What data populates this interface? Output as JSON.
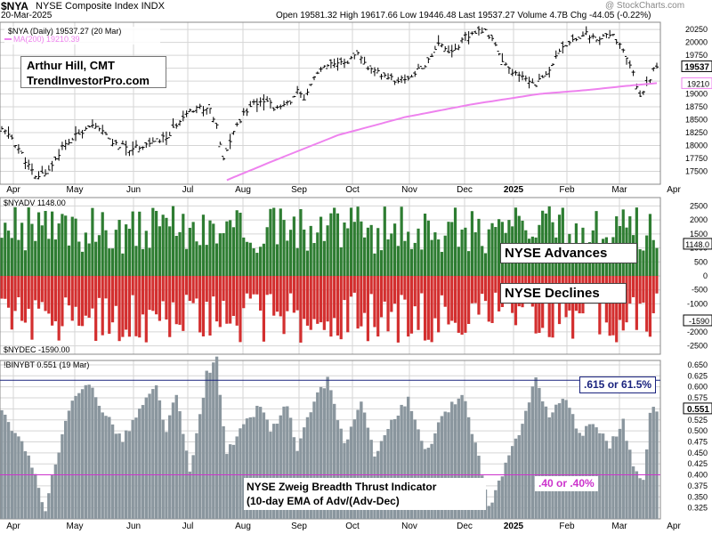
{
  "header": {
    "symbol": "$NYA",
    "name": "NYSE Composite Index",
    "exchange": "INDX",
    "date": "20-Mar-2025",
    "quote": "Open 19581.32  High 19617.66  Low 19446.48  Last 19537.27  Volume 4.7B  Chg -44.05 (-0.22%)",
    "brand": "@ StockCharts.com"
  },
  "credit": {
    "line1": "Arthur Hill, CMT",
    "line2": "TrendInvestorPro.com"
  },
  "annotations": {
    "advances": "NYSE Advances",
    "declines": "NYSE Declines",
    "zweig_line1": "NYSE Zweig Breadth Thrust Indicator",
    "zweig_line2": "(10-day EMA of Adv/(Adv-Dec)",
    "upper_level": ".615 or 61.5%",
    "lower_level": ".40 or .40%"
  },
  "colors": {
    "price": "#000000",
    "ma": "#ee82ee",
    "advances": "#2e7d32",
    "declines": "#d32f2f",
    "zbt": "#8a969e",
    "upper_line": "#1a237e",
    "lower_line": "#cc33cc",
    "grid": "#d5d5d5"
  },
  "chart_data": [
    {
      "type": "ohlc",
      "legend": [
        "$NYA (Daily) 19537.27 (20 Mar)",
        "MA(200) 19210.39"
      ],
      "months": [
        "Apr",
        "May",
        "Jun",
        "Jul",
        "Aug",
        "Sep",
        "Oct",
        "Nov",
        "Dec",
        "2025",
        "Feb",
        "Mar",
        "Apr"
      ],
      "yticks": [
        17500,
        17750,
        18000,
        18250,
        18500,
        18750,
        19000,
        19250,
        19500,
        19750,
        20000,
        20250
      ],
      "ylim": [
        17250,
        20390
      ],
      "last_label": "19537",
      "ma_label": "19210",
      "close_pts": [
        [
          0,
          18310
        ],
        [
          3,
          18150
        ],
        [
          7,
          17720
        ],
        [
          10,
          17370
        ],
        [
          14,
          17530
        ],
        [
          18,
          17960
        ],
        [
          22,
          18180
        ],
        [
          26,
          18400
        ],
        [
          30,
          18250
        ],
        [
          34,
          18010
        ],
        [
          38,
          17950
        ],
        [
          42,
          18010
        ],
        [
          46,
          18080
        ],
        [
          50,
          18200
        ],
        [
          54,
          18600
        ],
        [
          58,
          18750
        ],
        [
          62,
          18700
        ],
        [
          64,
          18350
        ],
        [
          66,
          17700
        ],
        [
          68,
          18100
        ],
        [
          70,
          18400
        ],
        [
          74,
          18800
        ],
        [
          78,
          18900
        ],
        [
          82,
          18700
        ],
        [
          85,
          18800
        ],
        [
          88,
          19050
        ],
        [
          90,
          18850
        ],
        [
          93,
          19350
        ],
        [
          97,
          19550
        ],
        [
          102,
          19600
        ],
        [
          106,
          19750
        ],
        [
          110,
          19450
        ],
        [
          114,
          19350
        ],
        [
          118,
          19250
        ],
        [
          122,
          19350
        ],
        [
          126,
          19550
        ],
        [
          130,
          20000
        ],
        [
          134,
          19800
        ],
        [
          138,
          20100
        ],
        [
          141,
          20150
        ],
        [
          143,
          20250
        ],
        [
          146,
          20100
        ],
        [
          149,
          19600
        ],
        [
          152,
          19400
        ],
        [
          156,
          19300
        ],
        [
          159,
          19200
        ],
        [
          162,
          19380
        ],
        [
          166,
          19800
        ],
        [
          170,
          20080
        ],
        [
          174,
          20150
        ],
        [
          178,
          20050
        ],
        [
          182,
          20170
        ],
        [
          185,
          19800
        ],
        [
          188,
          19380
        ],
        [
          190,
          18950
        ],
        [
          192,
          19200
        ],
        [
          194,
          19450
        ],
        [
          195,
          19537
        ]
      ],
      "ma_start_pt": [
        67,
        17300
      ],
      "ma_pts": [
        [
          67,
          17330
        ],
        [
          80,
          17680
        ],
        [
          100,
          18200
        ],
        [
          120,
          18550
        ],
        [
          140,
          18800
        ],
        [
          160,
          19000
        ],
        [
          175,
          19080
        ],
        [
          185,
          19150
        ],
        [
          195,
          19210
        ]
      ]
    },
    {
      "type": "bar",
      "legend_top": "$NYADV 1148.00",
      "legend_bottom": "$NYDEC -1590.00",
      "yticks": [
        -2500,
        -2000,
        -1500,
        -1000,
        -500,
        0,
        500,
        1000,
        1500,
        2000,
        2500
      ],
      "ylim": [
        -2800,
        2800
      ],
      "last_adv_label": "1148.0",
      "last_dec_label": "-1590",
      "last_advances": 1148,
      "last_declines": -1590
    },
    {
      "type": "bar",
      "legend": "!BINYBT 0.551 (19 Mar)",
      "yticks": [
        0.325,
        0.35,
        0.375,
        0.4,
        0.425,
        0.45,
        0.475,
        0.5,
        0.525,
        0.55,
        0.575,
        0.6,
        0.625,
        0.65
      ],
      "ylim": [
        0.3,
        0.66
      ],
      "last_label": "0.551",
      "last_value": 0.551,
      "upper_level": 0.615,
      "lower_level": 0.4,
      "peaks": [
        [
          0,
          0.55
        ],
        [
          8,
          0.44
        ],
        [
          13,
          0.325
        ],
        [
          20,
          0.55
        ],
        [
          26,
          0.61
        ],
        [
          30,
          0.55
        ],
        [
          36,
          0.48
        ],
        [
          42,
          0.56
        ],
        [
          46,
          0.6
        ],
        [
          49,
          0.5
        ],
        [
          52,
          0.585
        ],
        [
          56,
          0.4
        ],
        [
          61,
          0.63
        ],
        [
          64,
          0.66
        ],
        [
          67,
          0.45
        ],
        [
          72,
          0.51
        ],
        [
          77,
          0.56
        ],
        [
          80,
          0.5
        ],
        [
          85,
          0.56
        ],
        [
          88,
          0.45
        ],
        [
          92,
          0.55
        ],
        [
          97,
          0.62
        ],
        [
          102,
          0.47
        ],
        [
          107,
          0.56
        ],
        [
          111,
          0.45
        ],
        [
          116,
          0.52
        ],
        [
          121,
          0.57
        ],
        [
          126,
          0.45
        ],
        [
          132,
          0.54
        ],
        [
          137,
          0.59
        ],
        [
          142,
          0.44
        ],
        [
          145,
          0.32
        ],
        [
          150,
          0.42
        ],
        [
          154,
          0.5
        ],
        [
          159,
          0.62
        ],
        [
          163,
          0.53
        ],
        [
          168,
          0.58
        ],
        [
          172,
          0.49
        ],
        [
          176,
          0.52
        ],
        [
          181,
          0.47
        ],
        [
          185,
          0.52
        ],
        [
          188,
          0.42
        ],
        [
          191,
          0.38
        ],
        [
          193,
          0.55
        ],
        [
          195,
          0.551
        ]
      ]
    }
  ]
}
